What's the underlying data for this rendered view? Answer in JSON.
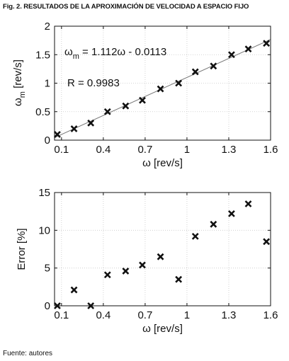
{
  "figure": {
    "label": "Fig. 2.",
    "title": "RESULTADOS DE LA APROXIMACIÓN DE VELOCIDAD A ESPACIO FIJO",
    "source": "Fuente: autores"
  },
  "chart_data": [
    {
      "type": "scatter",
      "title": "",
      "xlabel": "ω [rev/s]",
      "ylabel_main": "ω",
      "ylabel_sub": "m",
      "ylabel_unit": " [rev/s]",
      "xlim": [
        0.05,
        1.6
      ],
      "ylim": [
        0,
        2
      ],
      "xticks": [
        0.1,
        0.4,
        0.7,
        1,
        1.3,
        1.6
      ],
      "xtick_labels": [
        "0.1",
        "0.4",
        "0.7",
        "1",
        "1.3",
        "1.6"
      ],
      "yticks": [
        0,
        0.5,
        1,
        1.5,
        2
      ],
      "ytick_labels": [
        "0",
        "0.5",
        "1",
        "1.5",
        "2"
      ],
      "grid": true,
      "marker": "x",
      "x": [
        0.07,
        0.19,
        0.31,
        0.43,
        0.56,
        0.68,
        0.81,
        0.94,
        1.06,
        1.19,
        1.32,
        1.44,
        1.57
      ],
      "y": [
        0.1,
        0.2,
        0.3,
        0.5,
        0.6,
        0.7,
        0.9,
        1.0,
        1.2,
        1.3,
        1.5,
        1.6,
        1.7
      ],
      "fit_line": {
        "slope": 1.112,
        "intercept": -0.0113
      },
      "annotation_eq": {
        "main": "ω",
        "sub": "m",
        "rest": " = 1.112ω - 0.0113"
      },
      "annotation_r": "R = 0.9983"
    },
    {
      "type": "scatter",
      "title": "",
      "xlabel": "ω [rev/s]",
      "ylabel": "Error [%]",
      "xlim": [
        0.05,
        1.6
      ],
      "ylim": [
        0,
        15
      ],
      "xticks": [
        0.1,
        0.4,
        0.7,
        1,
        1.3,
        1.6
      ],
      "xtick_labels": [
        "0.1",
        "0.4",
        "0.7",
        "1",
        "1.3",
        "1.6"
      ],
      "yticks": [
        0,
        5,
        10,
        15
      ],
      "ytick_labels": [
        "0",
        "5",
        "10",
        "15"
      ],
      "grid": true,
      "marker": "x",
      "x": [
        0.07,
        0.19,
        0.31,
        0.43,
        0.56,
        0.68,
        0.81,
        0.94,
        1.06,
        1.19,
        1.32,
        1.44,
        1.57
      ],
      "y": [
        0.0,
        2.1,
        0.0,
        4.1,
        4.6,
        5.4,
        6.5,
        3.5,
        9.2,
        10.8,
        12.2,
        13.5,
        8.5
      ]
    }
  ]
}
